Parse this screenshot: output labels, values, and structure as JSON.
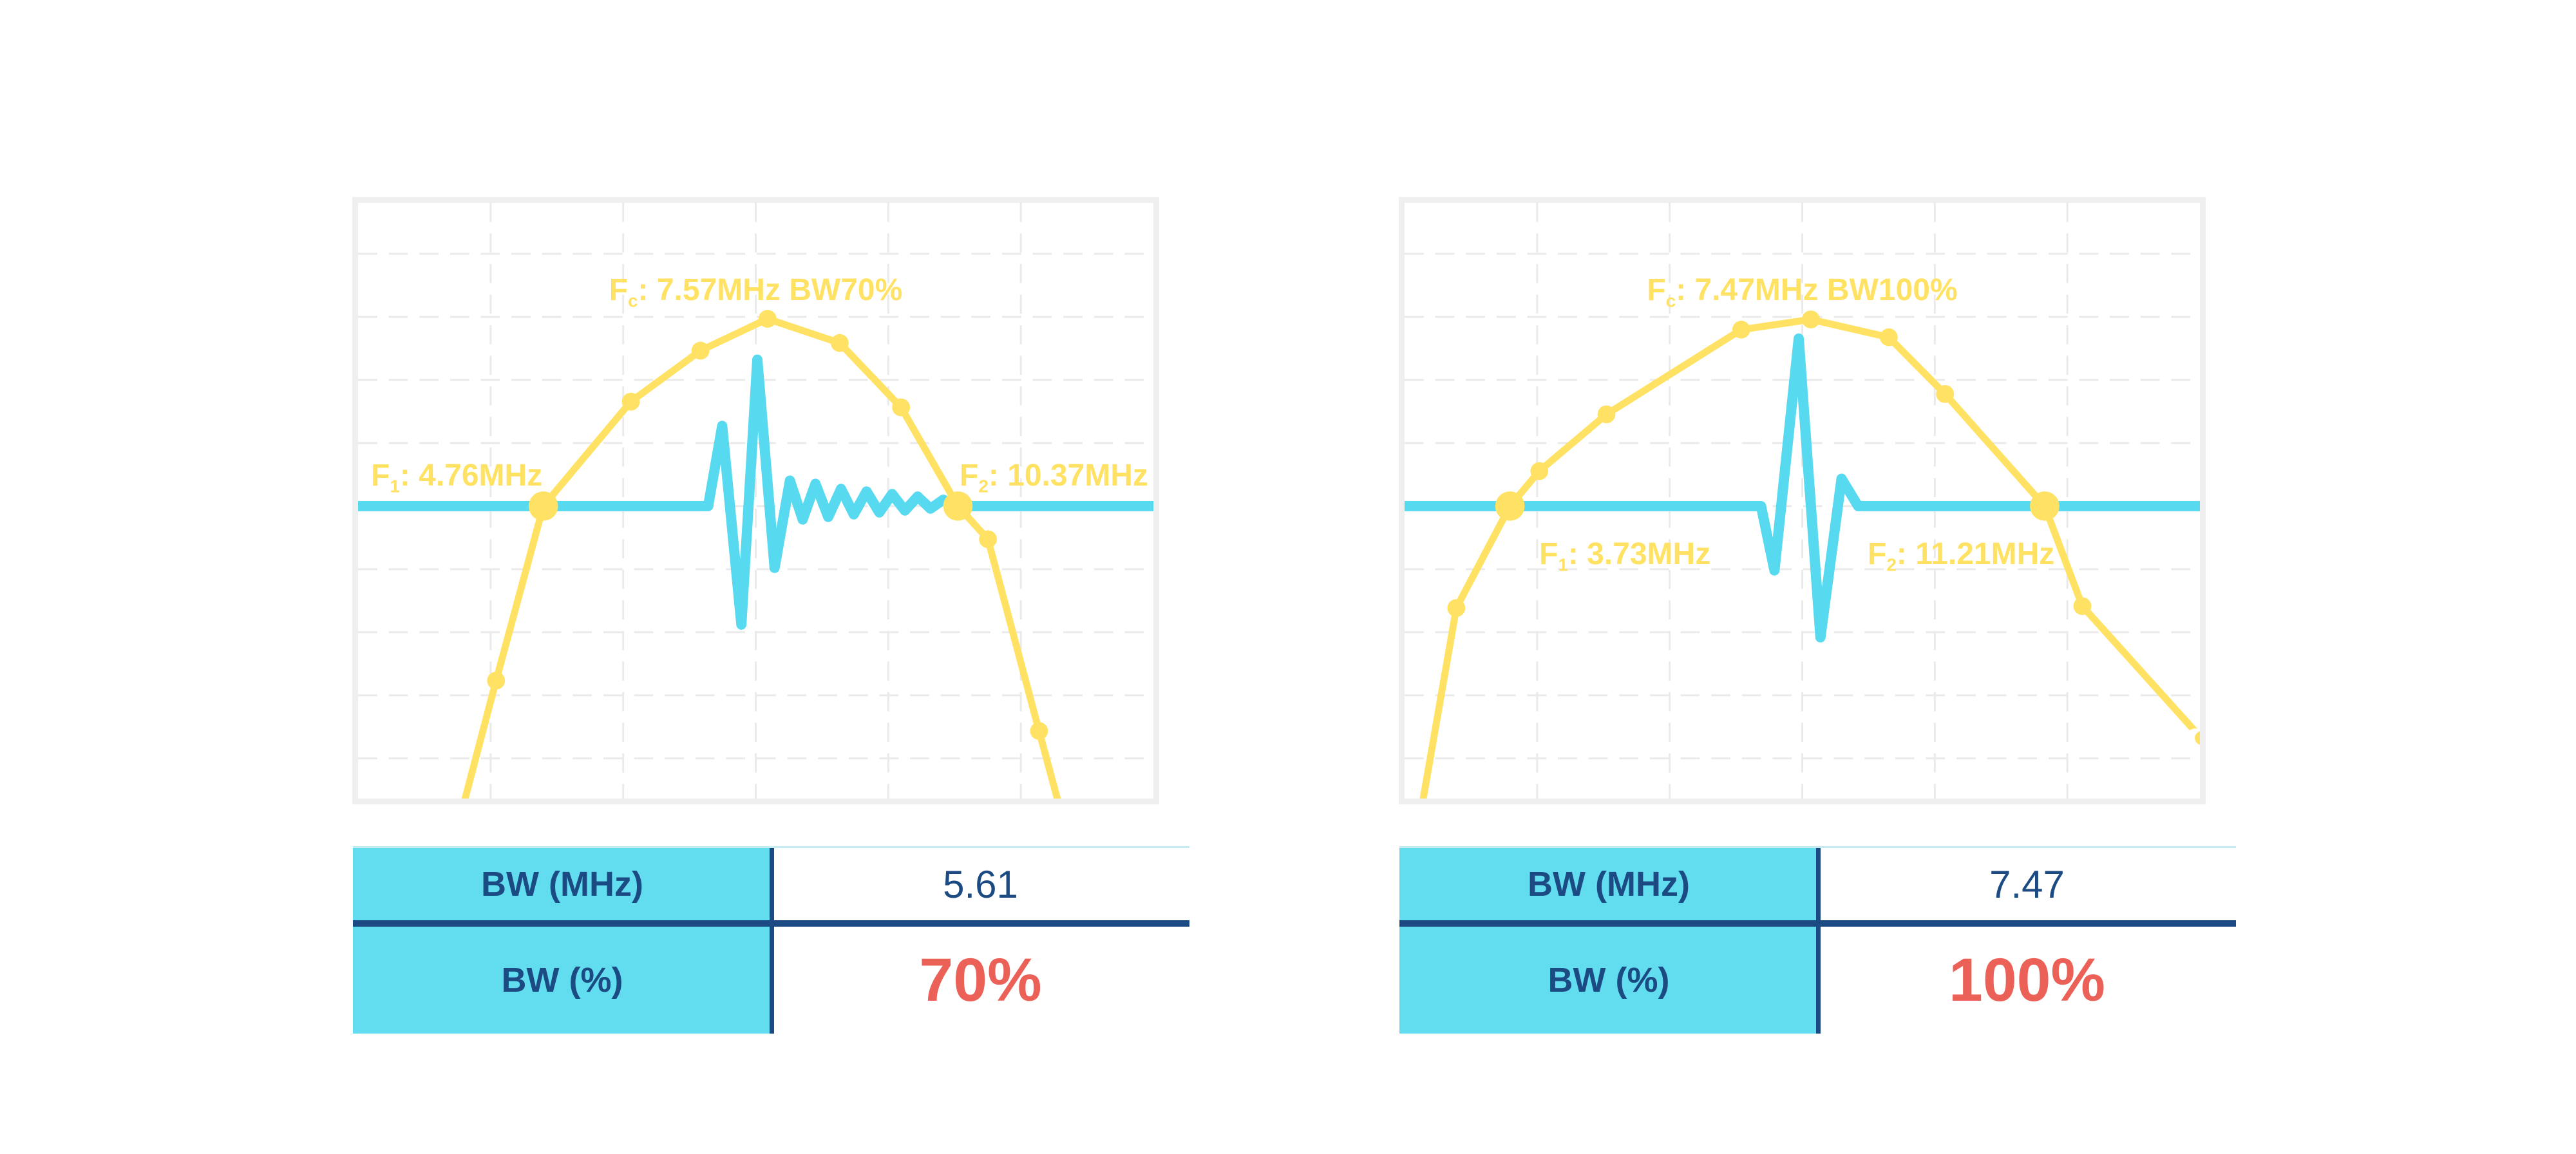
{
  "colors": {
    "curve_yellow": "#FFE263",
    "pulse_cyan": "#57D9F0",
    "navy": "#1B4B82",
    "highlight_red": "#EB6157",
    "table_cyan": "#62DCEF",
    "frame_gray": "#EFEFEF",
    "grid_gray": "#EAEAEA",
    "table_top_line": "#C7EBF3"
  },
  "panels": [
    {
      "name": "bandwidth-70-percent",
      "fc_label": {
        "f": "F",
        "sub": "c",
        "text": ": 7.57MHz BW70%"
      },
      "f1_label": {
        "f": "F",
        "sub": "1",
        "text": ": 4.76MHz"
      },
      "f2_label": {
        "f": "F",
        "sub": "2",
        "text": ": 10.37MHz"
      },
      "table": {
        "rows": [
          {
            "label": "BW (MHz)",
            "value": "5.61"
          },
          {
            "label": "BW (%)",
            "value": "70%"
          }
        ]
      }
    },
    {
      "name": "bandwidth-100-percent",
      "fc_label": {
        "f": "F",
        "sub": "c",
        "text": ": 7.47MHz BW100%"
      },
      "f1_label": {
        "f": "F",
        "sub": "1",
        "text": ": 3.73MHz"
      },
      "f2_label": {
        "f": "F",
        "sub": "2",
        "text": ": 11.21MHz"
      },
      "table": {
        "rows": [
          {
            "label": "BW (MHz)",
            "value": "7.47"
          },
          {
            "label": "BW (%)",
            "value": "100%"
          }
        ]
      }
    }
  ],
  "chart_data": [
    {
      "type": "line",
      "title": "Fc: 7.57MHz BW70%",
      "fc_mhz": 7.57,
      "f1_mhz": 4.76,
      "f2_mhz": 10.37,
      "bw_mhz": 5.61,
      "bw_pct": 70,
      "annotations": [
        "F1: 4.76MHz",
        "F2: 10.37MHz"
      ],
      "x_units": "MHz",
      "grid": {
        "v_lines": 5,
        "h_start": 80,
        "h_step": 99,
        "h_lines": 9,
        "dashed": true
      },
      "plot_size": [
        1245,
        935
      ],
      "series": [
        {
          "name": "spectrum",
          "points": [
            [
              148,
              1010
            ],
            [
              216,
              750
            ],
            [
              290,
              476
            ],
            [
              427,
              312
            ],
            [
              536,
              232
            ],
            [
              641,
              182
            ],
            [
              754,
              220
            ],
            [
              850,
              321
            ],
            [
              939,
              476
            ],
            [
              986,
              528
            ],
            [
              1066,
              829
            ],
            [
              1112,
              1000
            ]
          ]
        },
        {
          "name": "pulse-echo-signal",
          "points": [
            [
              0,
              476
            ],
            [
              548,
              476
            ],
            [
              570,
              350
            ],
            [
              600,
              662
            ],
            [
              625,
              246
            ],
            [
              652,
              573
            ],
            [
              676,
              436
            ],
            [
              696,
              497
            ],
            [
              716,
              441
            ],
            [
              736,
              493
            ],
            [
              756,
              449
            ],
            [
              776,
              489
            ],
            [
              796,
              453
            ],
            [
              816,
              486
            ],
            [
              836,
              457
            ],
            [
              856,
              483
            ],
            [
              876,
              461
            ],
            [
              896,
              480
            ],
            [
              916,
              466
            ],
            [
              939,
              476
            ],
            [
              1245,
              476
            ]
          ]
        }
      ],
      "markers": {
        "dots": [
          [
            216,
            750
          ],
          [
            427,
            312
          ],
          [
            536,
            232
          ],
          [
            641,
            182
          ],
          [
            754,
            220
          ],
          [
            850,
            321
          ],
          [
            986,
            528
          ],
          [
            1066,
            829
          ]
        ],
        "big": [
          [
            290,
            476
          ],
          [
            939,
            476
          ]
        ],
        "open": []
      }
    },
    {
      "type": "line",
      "title": "Fc: 7.47MHz BW100%",
      "fc_mhz": 7.47,
      "f1_mhz": 3.73,
      "f2_mhz": 11.21,
      "bw_mhz": 7.47,
      "bw_pct": 100,
      "annotations": [
        "F1: 3.73MHz",
        "F2: 11.21MHz"
      ],
      "x_units": "MHz",
      "grid": {
        "v_lines": 5,
        "h_start": 80,
        "h_step": 99,
        "h_lines": 9,
        "dashed": true
      },
      "plot_size": [
        1245,
        935
      ],
      "series": [
        {
          "name": "spectrum",
          "points": [
            [
              18,
              1000
            ],
            [
              81,
              636
            ],
            [
              165,
              476
            ],
            [
              211,
              421
            ],
            [
              316,
              332
            ],
            [
              527,
              199
            ],
            [
              636,
              183
            ],
            [
              758,
              211
            ],
            [
              846,
              300
            ],
            [
              1002,
              476
            ],
            [
              1061,
              633
            ],
            [
              1247,
              840
            ]
          ]
        },
        {
          "name": "pulse-echo-signal",
          "points": [
            [
              0,
              476
            ],
            [
              558,
              476
            ],
            [
              579,
              577
            ],
            [
              617,
              213
            ],
            [
              651,
              682
            ],
            [
              684,
              433
            ],
            [
              710,
              476
            ],
            [
              1245,
              476
            ]
          ]
        }
      ],
      "markers": {
        "dots": [
          [
            81,
            636
          ],
          [
            211,
            421
          ],
          [
            316,
            332
          ],
          [
            527,
            199
          ],
          [
            636,
            183
          ],
          [
            758,
            211
          ],
          [
            846,
            300
          ],
          [
            1061,
            633
          ]
        ],
        "big": [
          [
            165,
            476
          ],
          [
            1002,
            476
          ]
        ],
        "open": [
          [
            1247,
            840
          ]
        ]
      }
    }
  ]
}
